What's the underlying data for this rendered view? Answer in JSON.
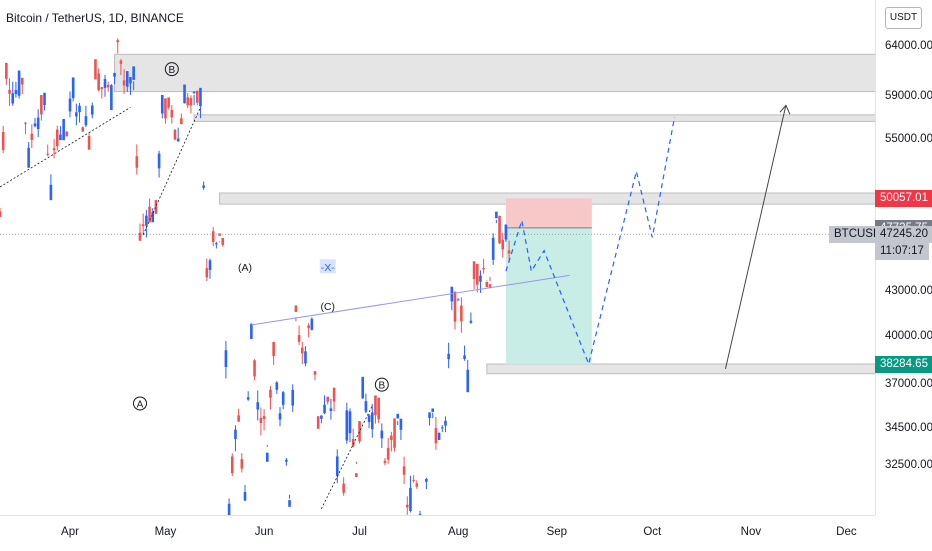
{
  "header": {
    "title": "Bitcoin / TetherUS, 1D, BINANCE",
    "currency": "USDT"
  },
  "price_axis": {
    "labels": [
      "64000.00",
      "59000.00",
      "55000.00",
      "43000.00",
      "40000.00",
      "37000.00",
      "34500.00",
      "32500.00"
    ]
  },
  "time_axis": {
    "labels": [
      "Apr",
      "May",
      "Jun",
      "Jul",
      "Aug",
      "Sep",
      "Oct",
      "Nov",
      "Dec"
    ]
  },
  "price_tags": {
    "resistance": "50057.01",
    "entry": "47725.75",
    "symbol": "BTCUSDT",
    "last": "47245.20",
    "countdown": "11:07:17",
    "target": "38284.65"
  },
  "wave_labels": [
    "A",
    "B",
    "(A)",
    "-X-",
    "(C)",
    "B"
  ],
  "colors": {
    "up": "#2962ff",
    "down": "#ef5350",
    "stop_zone": "#f7c8c8",
    "target_zone": "#c8ece6",
    "zone": "#e5e5e5",
    "projection": "#2962ff"
  },
  "chart_data": {
    "type": "candlestick",
    "symbol": "BTCUSDT",
    "interval": "1D",
    "exchange": "BINANCE",
    "y_scale": "log",
    "ylim": [
      30000,
      69000
    ],
    "x_range": [
      "2021-03-10",
      "2021-12-10"
    ],
    "ohlc_weekly": [
      {
        "t": "2021-03-08",
        "o": 49000,
        "h": 61800,
        "l": 48800,
        "c": 59500
      },
      {
        "t": "2021-03-15",
        "o": 59500,
        "h": 60700,
        "l": 53300,
        "c": 57300
      },
      {
        "t": "2021-03-22",
        "o": 57300,
        "h": 58400,
        "l": 50500,
        "c": 55800
      },
      {
        "t": "2021-03-29",
        "o": 55800,
        "h": 60000,
        "l": 55500,
        "c": 57100
      },
      {
        "t": "2021-04-05",
        "o": 57100,
        "h": 61800,
        "l": 55400,
        "c": 60000
      },
      {
        "t": "2021-04-12",
        "o": 60000,
        "h": 64850,
        "l": 59000,
        "c": 60100
      },
      {
        "t": "2021-04-19",
        "o": 60100,
        "h": 60500,
        "l": 47000,
        "c": 49000
      },
      {
        "t": "2021-04-26",
        "o": 49000,
        "h": 58000,
        "l": 48800,
        "c": 57800
      },
      {
        "t": "2021-05-03",
        "o": 57800,
        "h": 59500,
        "l": 55000,
        "c": 58200
      },
      {
        "t": "2021-05-10",
        "o": 58200,
        "h": 59200,
        "l": 43800,
        "c": 46400
      },
      {
        "t": "2021-05-17",
        "o": 46400,
        "h": 46700,
        "l": 30000,
        "c": 34700
      },
      {
        "t": "2021-05-24",
        "o": 34700,
        "h": 40900,
        "l": 31100,
        "c": 35700
      },
      {
        "t": "2021-05-31",
        "o": 35700,
        "h": 39500,
        "l": 33500,
        "c": 35800
      },
      {
        "t": "2021-06-07",
        "o": 35800,
        "h": 41300,
        "l": 31000,
        "c": 39100
      },
      {
        "t": "2021-06-14",
        "o": 39100,
        "h": 41300,
        "l": 34800,
        "c": 35500
      },
      {
        "t": "2021-06-21",
        "o": 35500,
        "h": 36200,
        "l": 28800,
        "c": 34700
      },
      {
        "t": "2021-06-28",
        "o": 34700,
        "h": 36600,
        "l": 32700,
        "c": 35300
      },
      {
        "t": "2021-07-05",
        "o": 35300,
        "h": 35900,
        "l": 32000,
        "c": 34300
      },
      {
        "t": "2021-07-12",
        "o": 34300,
        "h": 34700,
        "l": 30000,
        "c": 31800
      },
      {
        "t": "2021-07-19",
        "o": 31800,
        "h": 35400,
        "l": 29300,
        "c": 34300
      },
      {
        "t": "2021-07-26",
        "o": 34300,
        "h": 42600,
        "l": 34300,
        "c": 41500
      },
      {
        "t": "2021-08-02",
        "o": 41500,
        "h": 44700,
        "l": 37300,
        "c": 44600
      },
      {
        "t": "2021-08-09",
        "o": 44600,
        "h": 48100,
        "l": 43800,
        "c": 47000
      },
      {
        "t": "2021-08-16",
        "o": 47000,
        "h": 48000,
        "l": 45000,
        "c": 47245
      }
    ],
    "horizontal_levels": [
      50057.01,
      47725.75,
      47245.2,
      38284.65
    ],
    "zones": [
      {
        "from": 59500,
        "to": 63200
      },
      {
        "from": 56700,
        "to": 57300
      },
      {
        "from": 49600,
        "to": 50500
      },
      {
        "from": 37700,
        "to": 38300
      }
    ],
    "short_position": {
      "entry": 47725.75,
      "stop": 50057.01,
      "target": 38284.65,
      "start": "2021-08-16",
      "end": "2021-09-12"
    },
    "projection_path": [
      {
        "t": "2021-08-16",
        "p": 44500
      },
      {
        "t": "2021-08-21",
        "p": 48300
      },
      {
        "t": "2021-08-24",
        "p": 44500
      },
      {
        "t": "2021-08-28",
        "p": 46000
      },
      {
        "t": "2021-09-11",
        "p": 38300
      },
      {
        "t": "2021-09-26",
        "p": 52300
      },
      {
        "t": "2021-10-01",
        "p": 47000
      },
      {
        "t": "2021-10-08",
        "p": 57100
      }
    ],
    "target_arrow": {
      "from": {
        "t": "2021-10-24",
        "p": 38000
      },
      "to": {
        "t": "2021-11-12",
        "p": 58200
      }
    }
  }
}
